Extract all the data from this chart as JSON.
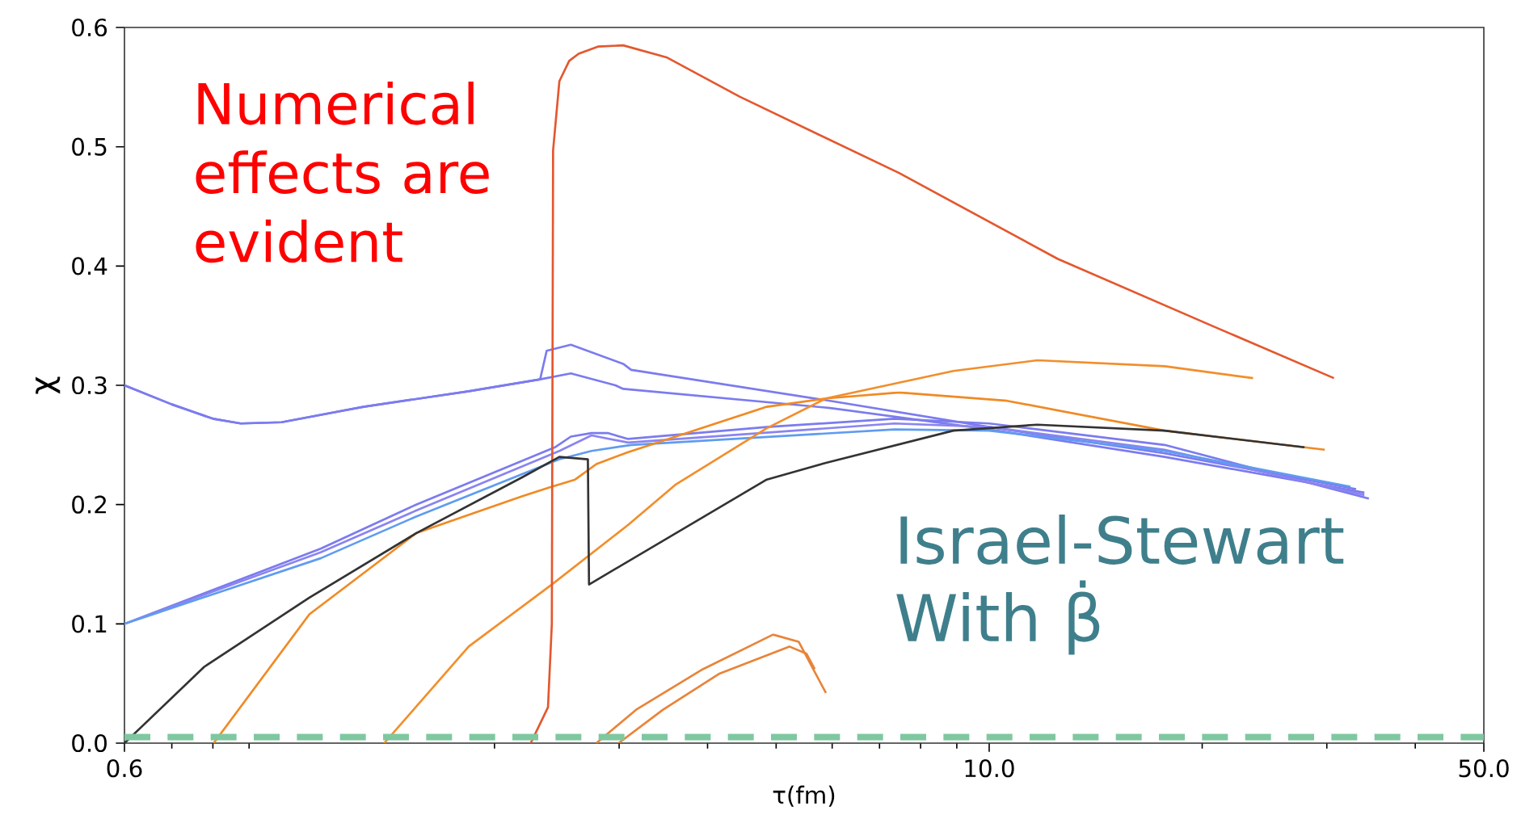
{
  "chart_data": {
    "type": "line",
    "xlabel": "τ(fm)",
    "ylabel": "χ",
    "log": "x",
    "marker": "none",
    "line_style": "solid",
    "grid": false,
    "legend": false,
    "xlim": [
      0.6,
      50
    ],
    "ylim": [
      0,
      0.6
    ],
    "xticks": [
      {
        "value": 0.6,
        "label": "0.6"
      },
      {
        "value": 10,
        "label": "10.0"
      },
      {
        "value": 50,
        "label": "50.0"
      }
    ],
    "yticks": [
      {
        "value": 0,
        "label": "0.0"
      },
      {
        "value": 0.1,
        "label": "0.1"
      },
      {
        "value": 0.2,
        "label": "0.2"
      },
      {
        "value": 0.3,
        "label": "0.3"
      },
      {
        "value": 0.4,
        "label": "0.4"
      },
      {
        "value": 0.5,
        "label": "0.5"
      },
      {
        "value": 0.6,
        "label": "0.6"
      }
    ],
    "series": [
      {
        "color": "#7b7bef",
        "x": [
          0.6,
          0.7,
          0.8,
          0.876,
          1.0,
          1.306,
          1.839,
          2.32,
          2.37,
          2.564,
          3.04,
          3.12,
          5.96,
          10.0,
          17.7,
          33.0
        ],
        "values": [
          0.3,
          0.284,
          0.272,
          0.268,
          0.269,
          0.282,
          0.295,
          0.305,
          0.329,
          0.334,
          0.318,
          0.313,
          0.287,
          0.265,
          0.243,
          0.213
        ]
      },
      {
        "color": "#7b7bef",
        "x": [
          0.6,
          0.7,
          0.8,
          0.876,
          1.0,
          1.306,
          1.839,
          2.32,
          2.564,
          2.964,
          3.04,
          5.96,
          10.0,
          17.7,
          33.9
        ],
        "values": [
          0.3,
          0.284,
          0.272,
          0.268,
          0.269,
          0.282,
          0.295,
          0.305,
          0.31,
          0.3,
          0.297,
          0.281,
          0.263,
          0.24,
          0.21
        ]
      },
      {
        "color": "#7b7bef",
        "x": [
          0.6,
          1.136,
          1.55,
          2.434,
          2.564,
          2.742,
          2.89,
          3.09,
          4.85,
          7.35,
          10.0,
          17.7,
          34.4
        ],
        "values": [
          0.1,
          0.163,
          0.2,
          0.248,
          0.257,
          0.26,
          0.26,
          0.255,
          0.265,
          0.272,
          0.268,
          0.25,
          0.205
        ]
      },
      {
        "color": "#8a84f0",
        "x": [
          0.6,
          1.136,
          1.55,
          2.47,
          2.742,
          3.09,
          7.35,
          10.0,
          17.7,
          33.9
        ],
        "values": [
          0.1,
          0.16,
          0.195,
          0.245,
          0.258,
          0.252,
          0.268,
          0.265,
          0.246,
          0.208
        ]
      },
      {
        "color": "#5f9cf0",
        "x": [
          0.6,
          1.136,
          1.55,
          2.47,
          2.742,
          3.12,
          7.35,
          10.0,
          17.7,
          32.4
        ],
        "values": [
          0.1,
          0.155,
          0.19,
          0.238,
          0.245,
          0.25,
          0.263,
          0.262,
          0.245,
          0.215
        ]
      },
      {
        "color": "#f08a24",
        "x": [
          0.802,
          1.095,
          1.55,
          2.19,
          2.38,
          2.6,
          2.786,
          3.09,
          4.85,
          5.88,
          7.46,
          10.6,
          17.7,
          29.8
        ],
        "values": [
          0,
          0.108,
          0.176,
          0.207,
          0.214,
          0.221,
          0.234,
          0.244,
          0.282,
          0.289,
          0.294,
          0.287,
          0.262,
          0.246
        ]
      },
      {
        "color": "#f28e2b",
        "x": [
          1.397,
          1.839,
          2.41,
          3.09,
          3.61,
          4.85,
          5.88,
          8.9,
          11.7,
          17.7,
          23.6
        ],
        "values": [
          0,
          0.081,
          0.133,
          0.183,
          0.217,
          0.264,
          0.289,
          0.312,
          0.321,
          0.316,
          0.306
        ]
      },
      {
        "color": "#e8843a",
        "x": [
          2.786,
          3.17,
          3.94,
          4.95,
          5.38,
          5.88
        ],
        "values": [
          0,
          0.028,
          0.062,
          0.091,
          0.085,
          0.042
        ]
      },
      {
        "color": "#e8843a",
        "x": [
          2.995,
          3.46,
          4.15,
          5.22,
          5.52,
          5.67
        ],
        "values": [
          0,
          0.028,
          0.058,
          0.081,
          0.075,
          0.062
        ]
      },
      {
        "color": "#e4572e",
        "x": [
          2.25,
          2.38,
          2.41,
          2.42,
          2.47,
          2.55,
          2.63,
          2.8,
          3.04,
          3.5,
          4.44,
          7.46,
          12.5,
          21.0,
          30.7
        ],
        "values": [
          0,
          0.03,
          0.1,
          0.497,
          0.555,
          0.572,
          0.578,
          0.584,
          0.585,
          0.575,
          0.542,
          0.478,
          0.406,
          0.348,
          0.306
        ]
      },
      {
        "color": "#333333",
        "x": [
          0.6,
          0.778,
          1.095,
          1.55,
          2.19,
          2.47,
          2.71,
          2.72,
          4.85,
          5.88,
          8.9,
          11.7,
          17.7,
          27.9
        ],
        "values": [
          0,
          0.064,
          0.122,
          0.176,
          0.223,
          0.24,
          0.238,
          0.133,
          0.221,
          0.235,
          0.262,
          0.267,
          0.262,
          0.248
        ]
      }
    ],
    "ref_lines": [
      {
        "axis": "y",
        "value": 0.005,
        "color": "#7ec8a0",
        "line_style": "dashed"
      }
    ],
    "annotations": [
      "Numerical effects are evident",
      "Israel-Stewart With β̇"
    ]
  }
}
